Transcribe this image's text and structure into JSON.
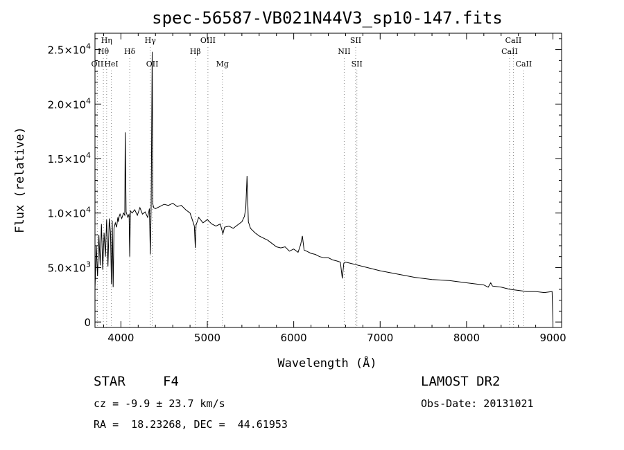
{
  "chart_data": {
    "type": "line",
    "title": "spec-56587-VB021N44V3_sp10-147.fits",
    "xlabel": "Wavelength (Å)",
    "ylabel": "Flux (relative)",
    "xlim": [
      3700,
      9100
    ],
    "ylim": [
      -500,
      26500
    ],
    "grid": false,
    "x_ticks": [
      {
        "value": 4000,
        "label": "4000"
      },
      {
        "value": 5000,
        "label": "5000"
      },
      {
        "value": 6000,
        "label": "6000"
      },
      {
        "value": 7000,
        "label": "7000"
      },
      {
        "value": 8000,
        "label": "8000"
      },
      {
        "value": 9000,
        "label": "9000"
      }
    ],
    "y_ticks": [
      {
        "value": 0,
        "mant": "0",
        "exp": ""
      },
      {
        "value": 5000,
        "mant": "5.0×10",
        "exp": "3"
      },
      {
        "value": 10000,
        "mant": "1.0×10",
        "exp": "4"
      },
      {
        "value": 15000,
        "mant": "1.5×10",
        "exp": "4"
      },
      {
        "value": 20000,
        "mant": "2.0×10",
        "exp": "4"
      },
      {
        "value": 25000,
        "mant": "2.5×10",
        "exp": "4"
      }
    ],
    "series": [
      {
        "x": [
          3700,
          3715,
          3730,
          3745,
          3760,
          3775,
          3790,
          3805,
          3820,
          3835,
          3850,
          3865,
          3880,
          3890,
          3900,
          3910,
          3920,
          3935,
          3950,
          3965,
          3970,
          3980,
          3990,
          4010,
          4030,
          4045,
          4050,
          4060,
          4080,
          4095,
          4102,
          4110,
          4130,
          4160,
          4190,
          4220,
          4250,
          4280,
          4310,
          4330,
          4340,
          4350,
          4362,
          4370,
          4380,
          4400,
          4450,
          4500,
          4550,
          4600,
          4650,
          4700,
          4750,
          4800,
          4830,
          4850,
          4861,
          4870,
          4900,
          4950,
          5000,
          5050,
          5100,
          5150,
          5180,
          5200,
          5250,
          5300,
          5350,
          5400,
          5430,
          5445,
          5460,
          5475,
          5500,
          5550,
          5600,
          5650,
          5700,
          5750,
          5800,
          5850,
          5900,
          5950,
          6000,
          6050,
          6080,
          6100,
          6120,
          6150,
          6200,
          6250,
          6300,
          6350,
          6400,
          6450,
          6500,
          6540,
          6562,
          6580,
          6600,
          6650,
          6700,
          6800,
          6900,
          7000,
          7200,
          7400,
          7600,
          7800,
          8000,
          8200,
          8250,
          8280,
          8300,
          8400,
          8500,
          8600,
          8700,
          8800,
          8900,
          8990,
          9000
        ],
        "y": [
          3000,
          7000,
          4200,
          8000,
          5200,
          9000,
          4800,
          8200,
          6000,
          9400,
          5100,
          9500,
          8200,
          3500,
          9300,
          3200,
          8600,
          9100,
          8700,
          9600,
          9200,
          9700,
          9900,
          9500,
          10000,
          9800,
          17400,
          10100,
          9600,
          9900,
          6000,
          10200,
          10000,
          10300,
          9800,
          10500,
          9900,
          10100,
          9600,
          10400,
          6200,
          10600,
          24800,
          10800,
          10500,
          10400,
          10600,
          10800,
          10700,
          10900,
          10600,
          10700,
          10300,
          10000,
          9300,
          8800,
          6800,
          8900,
          9600,
          9100,
          9400,
          9000,
          8800,
          9000,
          8100,
          8700,
          8800,
          8600,
          8900,
          9200,
          9700,
          10500,
          13400,
          9200,
          8600,
          8200,
          7900,
          7700,
          7500,
          7200,
          6900,
          6800,
          6900,
          6500,
          6700,
          6400,
          7100,
          7900,
          6600,
          6500,
          6300,
          6200,
          6000,
          5900,
          5900,
          5700,
          5600,
          5500,
          4000,
          5400,
          5500,
          5400,
          5300,
          5100,
          4900,
          4700,
          4400,
          4100,
          3900,
          3800,
          3600,
          3400,
          3200,
          3600,
          3300,
          3200,
          3000,
          2900,
          2800,
          2800,
          2700,
          2800,
          0
        ]
      }
    ],
    "line_markers": [
      {
        "label": "Hη",
        "wave": 3835,
        "row": 0
      },
      {
        "label": "Hθ",
        "wave": 3797,
        "row": 1
      },
      {
        "label": "OII",
        "wave": 3727,
        "row": 2
      },
      {
        "label": "HeI",
        "wave": 3889,
        "row": 2
      },
      {
        "label": "Hδ",
        "wave": 4102,
        "row": 1
      },
      {
        "label": "Hγ",
        "wave": 4340,
        "row": 0
      },
      {
        "label": "OII",
        "wave": 4363,
        "row": 2
      },
      {
        "label": "Hβ",
        "wave": 4861,
        "row": 1
      },
      {
        "label": "OIII",
        "wave": 5007,
        "row": 0
      },
      {
        "label": "Mg",
        "wave": 5175,
        "row": 2
      },
      {
        "label": "SII",
        "wave": 6717,
        "row": 0
      },
      {
        "label": "NII",
        "wave": 6584,
        "row": 1
      },
      {
        "label": "SII",
        "wave": 6731,
        "row": 2
      },
      {
        "label": "CaII",
        "wave": 8542,
        "row": 0
      },
      {
        "label": "CaII",
        "wave": 8498,
        "row": 1
      },
      {
        "label": "CaII",
        "wave": 8662,
        "row": 2
      }
    ],
    "line_color": "#000000",
    "marker_color": "#888888"
  },
  "info": {
    "class_label": "STAR",
    "subclass": "F4",
    "survey": "LAMOST DR2",
    "cz": "cz = -9.9 ± 23.7 km/s",
    "obs_date": "Obs-Date: 20131021",
    "coords": "RA =  18.23268, DEC =  44.61953"
  }
}
